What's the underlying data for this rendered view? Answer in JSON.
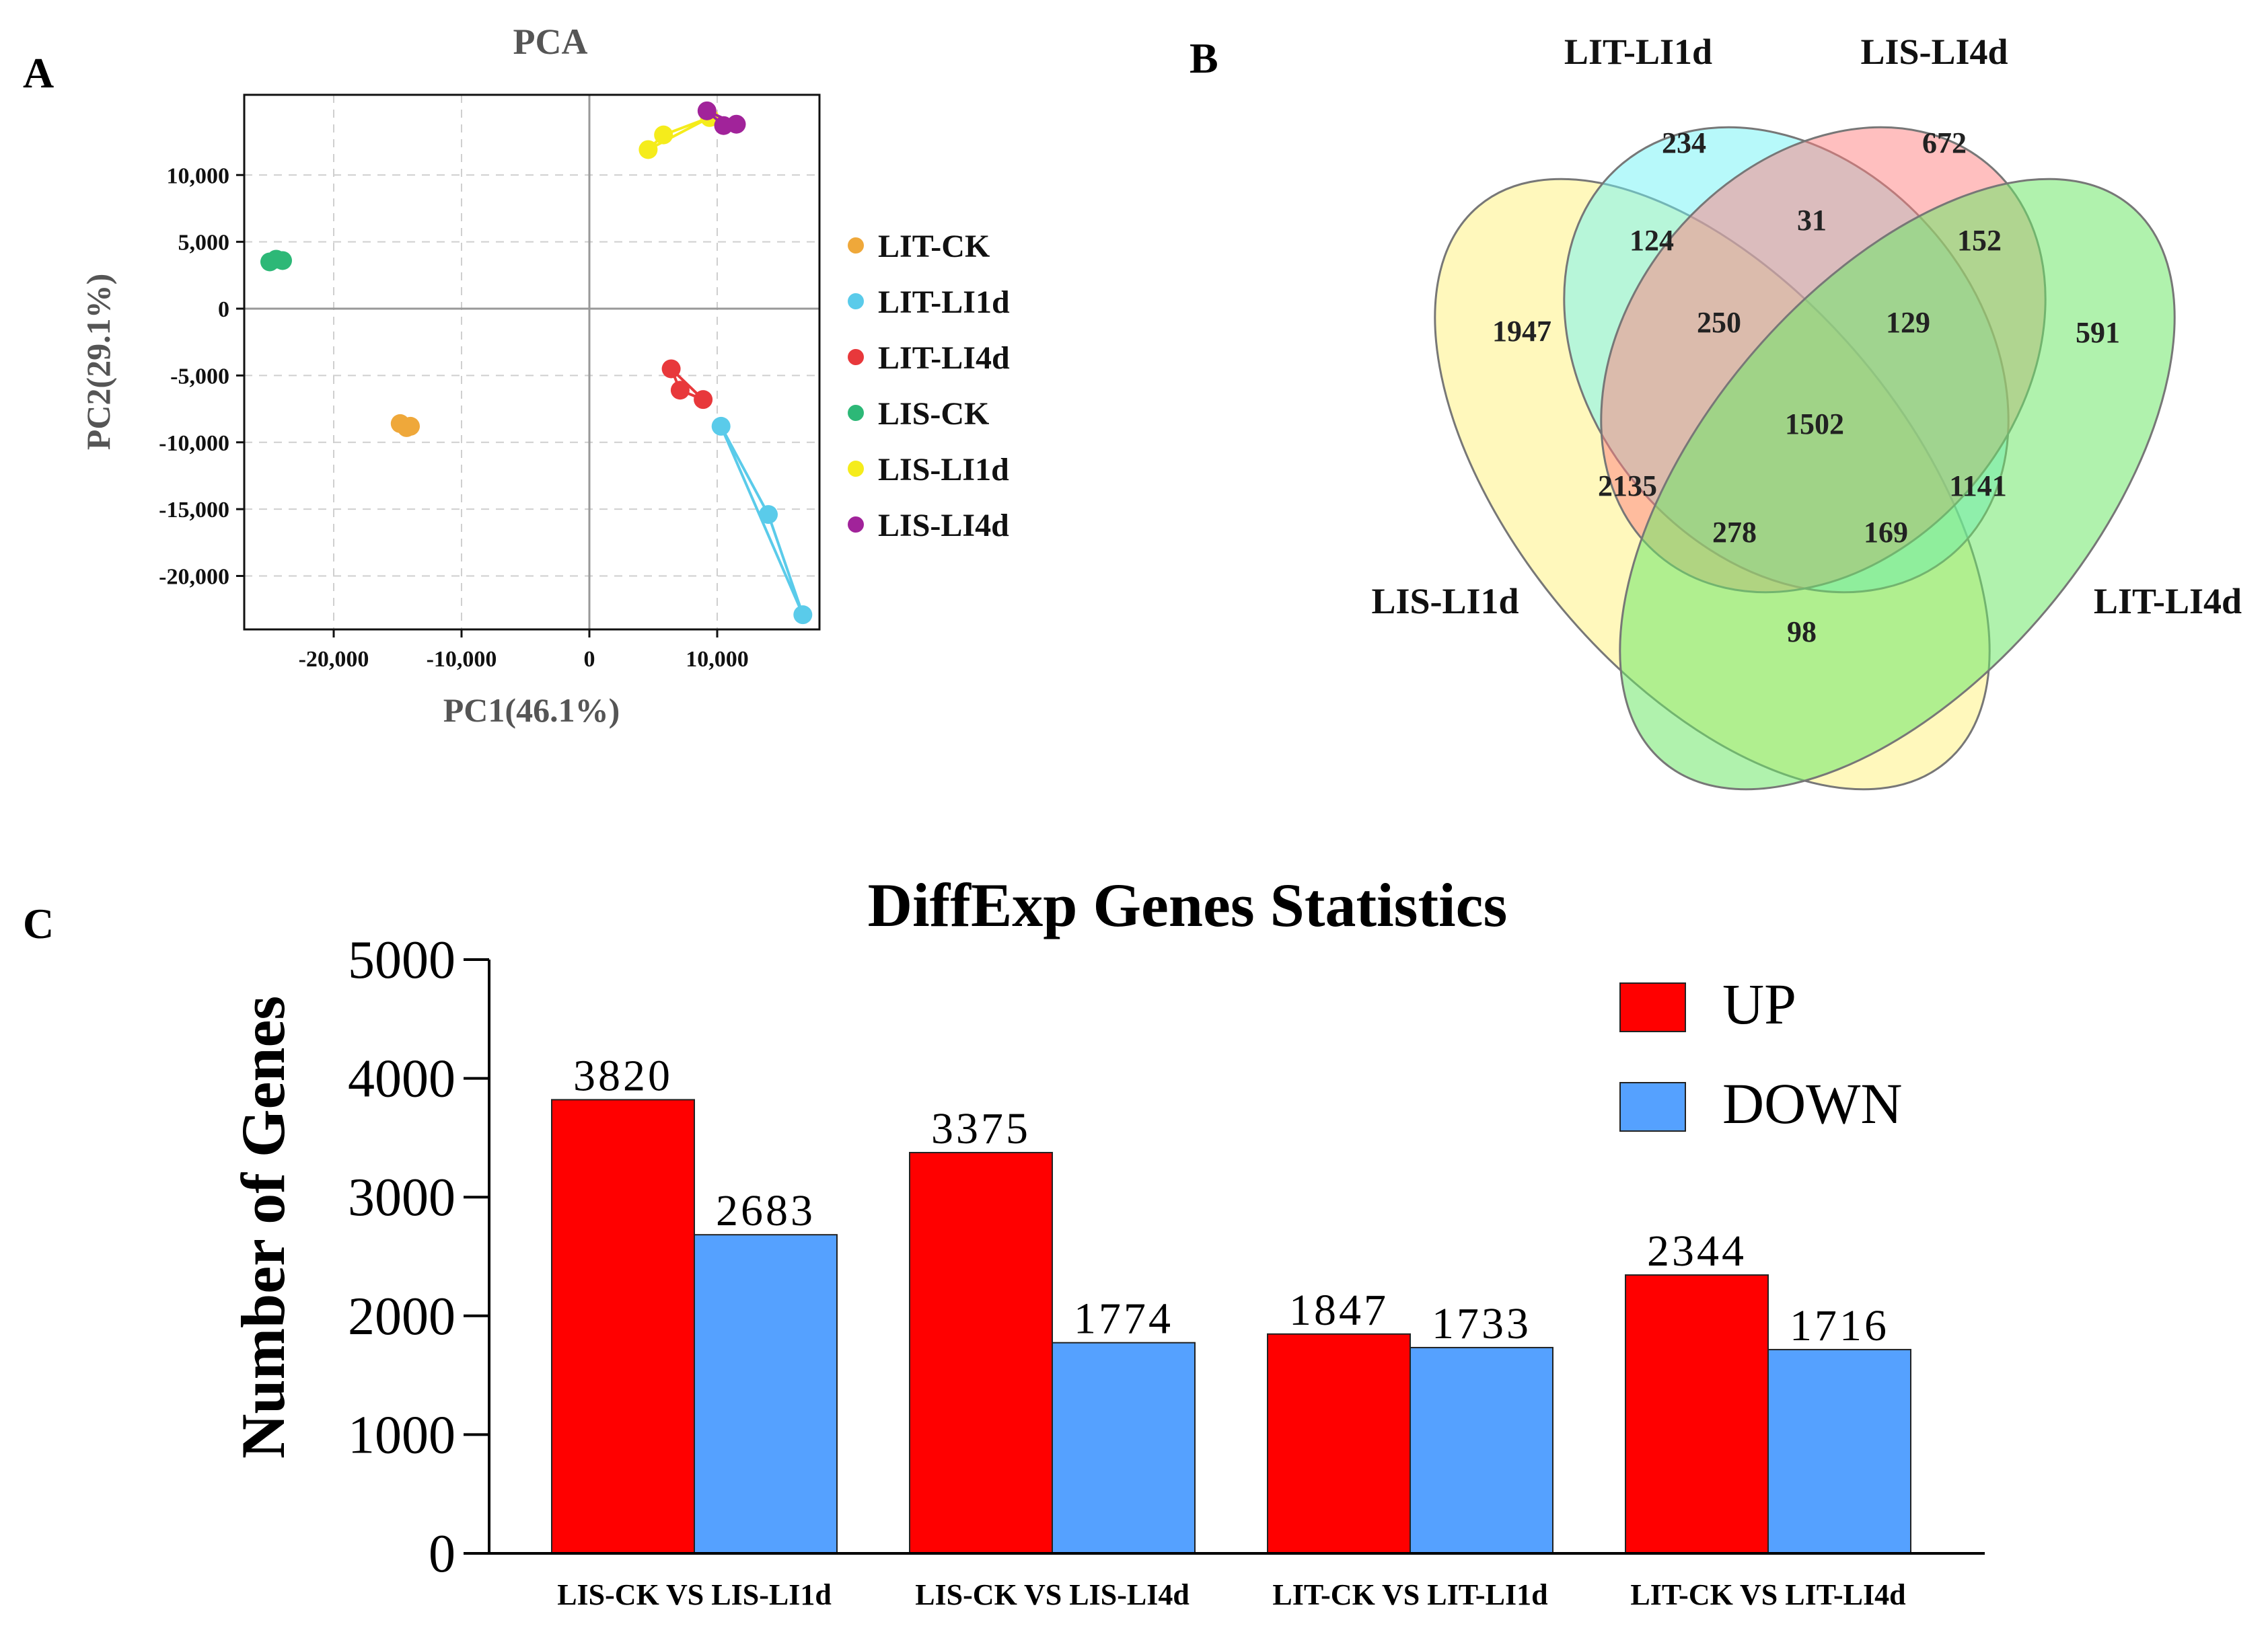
{
  "panels": {
    "a": "A",
    "b": "B",
    "c": "C"
  },
  "chart_data": [
    {
      "type": "scatter",
      "title": "PCA",
      "xlabel": "PC1(46.1%)",
      "ylabel": "PC2(29.1%)",
      "xlim": [
        -27000,
        18000
      ],
      "ylim": [
        -24000,
        16000
      ],
      "xticks": [
        -20000,
        -10000,
        0,
        10000
      ],
      "xtick_labels": [
        "-20,000",
        "-10,000",
        "0",
        "10,000"
      ],
      "yticks": [
        10000,
        5000,
        0,
        -5000,
        -10000,
        -15000,
        -20000
      ],
      "ytick_labels": [
        "10,000",
        "5,000",
        "0",
        "-5,000",
        "-10,000",
        "-15,000",
        "-20,000"
      ],
      "grid": true,
      "legend_position": "right",
      "series": [
        {
          "name": "LIT-CK",
          "color": "#EFA83A",
          "points": [
            [
              -14800,
              -8600
            ],
            [
              -14300,
              -8900
            ],
            [
              -14000,
              -8800
            ]
          ]
        },
        {
          "name": "LIT-LI1d",
          "color": "#5ACBEA",
          "points": [
            [
              10300,
              -8800
            ],
            [
              14000,
              -15400
            ],
            [
              16700,
              -22900
            ]
          ]
        },
        {
          "name": "LIT-LI4d",
          "color": "#E8383B",
          "points": [
            [
              6400,
              -4500
            ],
            [
              7100,
              -6100
            ],
            [
              8900,
              -6800
            ]
          ]
        },
        {
          "name": "LIS-CK",
          "color": "#2DB877",
          "points": [
            [
              -25000,
              3500
            ],
            [
              -24500,
              3700
            ],
            [
              -24000,
              3600
            ]
          ]
        },
        {
          "name": "LIS-LI1d",
          "color": "#F5EC1B",
          "points": [
            [
              4600,
              11900
            ],
            [
              5800,
              13000
            ],
            [
              9400,
              14300
            ]
          ]
        },
        {
          "name": "LIS-LI4d",
          "color": "#A1239A",
          "points": [
            [
              9200,
              14800
            ],
            [
              10500,
              13700
            ],
            [
              11500,
              13800
            ]
          ]
        }
      ]
    },
    {
      "type": "venn",
      "sets": [
        {
          "name": "LIS-LI1d",
          "color": "#FFF27A"
        },
        {
          "name": "LIT-LI1d",
          "color": "#6FF3F5"
        },
        {
          "name": "LIS-LI4d",
          "color": "#FF7F7F"
        },
        {
          "name": "LIT-LI4d",
          "color": "#6FE86A"
        }
      ],
      "regions": [
        {
          "sets": [
            "LIS-LI1d"
          ],
          "value": "1947"
        },
        {
          "sets": [
            "LIT-LI1d"
          ],
          "value": "234"
        },
        {
          "sets": [
            "LIS-LI4d"
          ],
          "value": "672"
        },
        {
          "sets": [
            "LIT-LI4d"
          ],
          "value": "591"
        },
        {
          "sets": [
            "LIT-LI1d",
            "LIS-LI4d"
          ],
          "value": "31"
        },
        {
          "sets": [
            "LIS-LI1d",
            "LIT-LI1d"
          ],
          "value": "124"
        },
        {
          "sets": [
            "LIS-LI4d",
            "LIT-LI4d"
          ],
          "value": "152"
        },
        {
          "sets": [
            "LIS-LI1d",
            "LIT-LI1d",
            "LIS-LI4d"
          ],
          "value": "250"
        },
        {
          "sets": [
            "LIT-LI1d",
            "LIS-LI4d",
            "LIT-LI4d"
          ],
          "value": "129"
        },
        {
          "sets": [
            "LIS-LI1d",
            "LIT-LI1d",
            "LIS-LI4d",
            "LIT-LI4d"
          ],
          "value": "1502"
        },
        {
          "sets": [
            "LIS-LI1d",
            "LIS-LI4d"
          ],
          "value": "2135"
        },
        {
          "sets": [
            "LIT-LI1d",
            "LIT-LI4d"
          ],
          "value": "1141"
        },
        {
          "sets": [
            "LIS-LI1d",
            "LIS-LI4d",
            "LIT-LI4d"
          ],
          "value": "278"
        },
        {
          "sets": [
            "LIS-LI1d",
            "LIT-LI1d",
            "LIT-LI4d"
          ],
          "value": "169"
        },
        {
          "sets": [
            "LIS-LI1d",
            "LIT-LI4d"
          ],
          "value": "98"
        }
      ]
    },
    {
      "type": "bar",
      "title": "DiffExp Genes Statistics",
      "xlabel": "",
      "ylabel": "Number of Genes",
      "ylim": [
        0,
        5000
      ],
      "yticks": [
        0,
        1000,
        2000,
        3000,
        4000,
        5000
      ],
      "categories": [
        "LIS-CK VS LIS-LI1d",
        "LIS-CK VS LIS-LI4d",
        "LIT-CK VS LIT-LI1d",
        "LIT-CK VS LIT-LI4d"
      ],
      "legend_position": "top-right",
      "series": [
        {
          "name": "UP",
          "color": "#FF0000",
          "values": [
            3820,
            3375,
            1847,
            2344
          ]
        },
        {
          "name": "DOWN",
          "color": "#55A1FF",
          "values": [
            2683,
            1774,
            1733,
            1716
          ]
        }
      ]
    }
  ]
}
